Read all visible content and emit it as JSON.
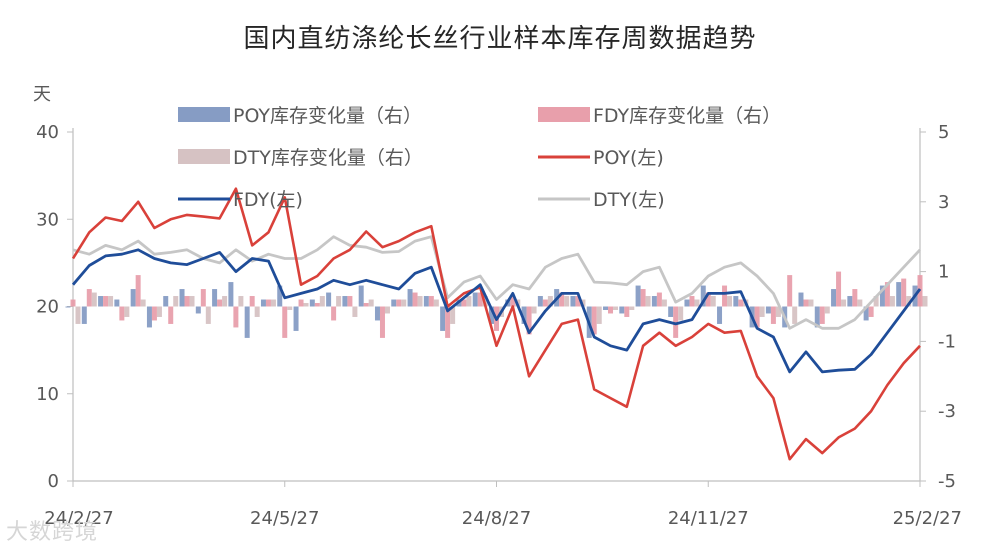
{
  "chart_data": {
    "type": "line+bar",
    "title": "国内直纺涤纶长丝行业样本库存周数据趋势",
    "y_left_unit": "天",
    "ylim_left": [
      0,
      40
    ],
    "yticks_left": [
      "0",
      "10",
      "20",
      "30",
      "40"
    ],
    "ylim_right": [
      -5,
      5
    ],
    "yticks_right": [
      "-5",
      "-3",
      "-1",
      "1",
      "3",
      "5"
    ],
    "x_tick_labels": [
      "24/2/27",
      "24/5/27",
      "24/8/27",
      "24/11/27",
      "25/2/27"
    ],
    "x_tick_index": [
      0,
      13,
      26,
      39,
      52
    ],
    "n_points": 53,
    "legend": [
      {
        "key": "poy_bar",
        "label": "POY库存变化量（右）",
        "kind": "bar",
        "color": "#8097c1"
      },
      {
        "key": "fdy_bar",
        "label": "FDY库存变化量（右）",
        "kind": "bar",
        "color": "#e79aa7"
      },
      {
        "key": "dty_bar",
        "label": "DTY库存变化量（右）",
        "kind": "bar",
        "color": "#d4bfc0"
      },
      {
        "key": "poy",
        "label": "POY(左)",
        "kind": "line",
        "color": "#d9413a"
      },
      {
        "key": "fdy",
        "label": "FDY(左)",
        "kind": "line",
        "color": "#1f4d99"
      },
      {
        "key": "dty",
        "label": "DTY(左)",
        "kind": "line",
        "color": "#c6c6c6"
      }
    ],
    "series": {
      "poy": [
        25.5,
        28.5,
        30.2,
        29.8,
        32,
        29,
        30,
        30.5,
        30.3,
        30.1,
        33.5,
        27,
        28.5,
        32.5,
        22.5,
        23.5,
        25.5,
        26.5,
        28.6,
        26.8,
        27.5,
        28.5,
        29.2,
        20,
        21.5,
        22.2,
        15.5,
        20,
        12,
        15,
        18,
        18.5,
        10.5,
        9.5,
        8.5,
        15.5,
        17,
        15.5,
        16.5,
        18,
        17,
        17.2,
        12,
        9.5,
        2.5,
        4.8,
        3.2,
        5,
        6,
        8,
        11,
        13.5,
        15.5
      ],
      "fdy": [
        22.5,
        24.7,
        25.8,
        26,
        26.5,
        25.5,
        25,
        24.8,
        25.5,
        26.2,
        24,
        25.5,
        25.2,
        21,
        21.5,
        22,
        23,
        22.5,
        23,
        22.5,
        22,
        23.8,
        24.5,
        19.5,
        21,
        22.5,
        18.5,
        21.5,
        17,
        19.5,
        21.5,
        21.5,
        16.5,
        15.5,
        15,
        18,
        18.5,
        18,
        18.5,
        21.5,
        21.5,
        21.7,
        17.5,
        16.5,
        12.5,
        14.8,
        12.5,
        12.7,
        12.8,
        14.5,
        17,
        19.5,
        22
      ],
      "dty": [
        26.5,
        26,
        27,
        26.5,
        27.5,
        26,
        26.2,
        26.5,
        25.5,
        25,
        26.5,
        25.2,
        26,
        25.5,
        25.5,
        26.5,
        28,
        27,
        26.8,
        26.2,
        26.3,
        27.5,
        28,
        21,
        22.8,
        23.5,
        20.8,
        22.5,
        22,
        24.5,
        25.5,
        26,
        22.8,
        22.7,
        22.5,
        24,
        24.5,
        20.5,
        21.5,
        23.5,
        24.5,
        25,
        23.5,
        21.5,
        17.5,
        18.5,
        17.5,
        17.5,
        18.5,
        20.5,
        22.5,
        24.5,
        26.5
      ],
      "poy_bar": [
        0,
        -0.5,
        0.3,
        0.2,
        0.5,
        -0.6,
        0.3,
        0.5,
        -0.2,
        0.5,
        0.7,
        -0.9,
        0.2,
        0.6,
        -0.7,
        0.2,
        0.4,
        0.3,
        0.6,
        -0.4,
        0.2,
        0.5,
        0.3,
        -0.7,
        0.2,
        0.4,
        -0.5,
        0.2,
        -0.5,
        0.3,
        0.5,
        0.3,
        -0.9,
        -0.1,
        -0.2,
        0.6,
        0.3,
        -0.3,
        0.2,
        0.6,
        -0.5,
        0.3,
        -0.6,
        -0.2,
        -0.6,
        0.4,
        -0.6,
        0.5,
        0.3,
        -0.4,
        0.6,
        0.7,
        0.6
      ],
      "fdy_bar": [
        0.2,
        0.5,
        0.3,
        -0.4,
        0.9,
        -0.4,
        -0.5,
        0.3,
        0.5,
        0.2,
        -0.6,
        0.3,
        0.2,
        -0.9,
        0.2,
        0.1,
        -0.4,
        0.3,
        0.1,
        -0.9,
        0.2,
        0.4,
        0.3,
        -0.9,
        0.2,
        0.4,
        -0.7,
        0.3,
        -0.8,
        0.2,
        0.4,
        0.3,
        -0.8,
        -0.2,
        -0.3,
        0.5,
        0.4,
        -0.9,
        0.3,
        0.4,
        0.6,
        0.2,
        -0.6,
        -0.5,
        0.9,
        0.2,
        -0.5,
        1,
        0.5,
        -0.3,
        0.7,
        0.8,
        0.9
      ],
      "dty_bar": [
        -0.5,
        0.4,
        0.3,
        -0.3,
        0.2,
        -0.3,
        0.3,
        0.3,
        -0.5,
        0.3,
        0.3,
        -0.3,
        0.2,
        -0.1,
        0.1,
        0.3,
        0.3,
        -0.3,
        0.2,
        -0.2,
        0.2,
        0.3,
        0.2,
        -0.5,
        0.3,
        0.3,
        -0.3,
        0.2,
        -0.2,
        0.3,
        0.3,
        0.2,
        -0.5,
        -0.1,
        -0.1,
        0.3,
        0.2,
        -0.4,
        0.2,
        0.3,
        0.3,
        0.2,
        -0.3,
        -0.3,
        -0.5,
        0.2,
        -0.2,
        0.2,
        0.2,
        0.3,
        0.3,
        0.3,
        0.3
      ]
    }
  },
  "watermark": "大数跨境"
}
